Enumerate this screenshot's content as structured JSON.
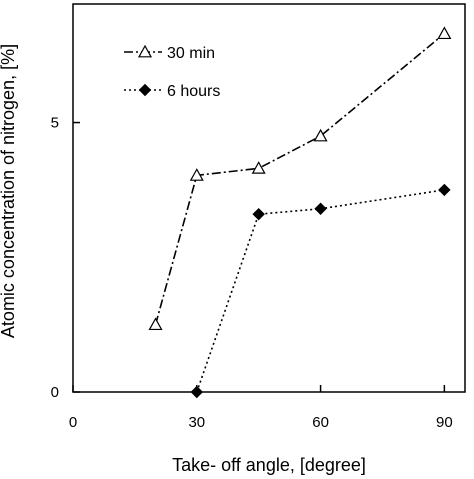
{
  "chart_data": {
    "type": "line",
    "title": "",
    "xlabel": "Take- off angle, [degree]",
    "ylabel": "Atomic concentration of nitrogen, [%]",
    "x_ticks": [
      {
        "value": 0,
        "label": "0"
      },
      {
        "value": 30,
        "label": "30"
      },
      {
        "value": 60,
        "label": "60"
      },
      {
        "value": 90,
        "label": "90"
      }
    ],
    "y_ticks": [
      {
        "value": 0,
        "label": "0"
      },
      {
        "value": 5,
        "label": "5"
      }
    ],
    "xlim": [
      0,
      95
    ],
    "ylim": [
      0,
      7.2
    ],
    "grid": false,
    "legend_position": "top-left",
    "series": [
      {
        "name": "30 min",
        "marker": "open-triangle",
        "line_style": "dash-dot",
        "color": "#000000",
        "x": [
          20,
          30,
          45,
          60,
          90
        ],
        "y": [
          1.25,
          4.02,
          4.15,
          4.75,
          6.65
        ]
      },
      {
        "name": "6 hours",
        "marker": "filled-diamond",
        "line_style": "dotted",
        "color": "#000000",
        "x": [
          30,
          45,
          60,
          90
        ],
        "y": [
          0,
          3.3,
          3.4,
          3.75
        ]
      }
    ]
  }
}
